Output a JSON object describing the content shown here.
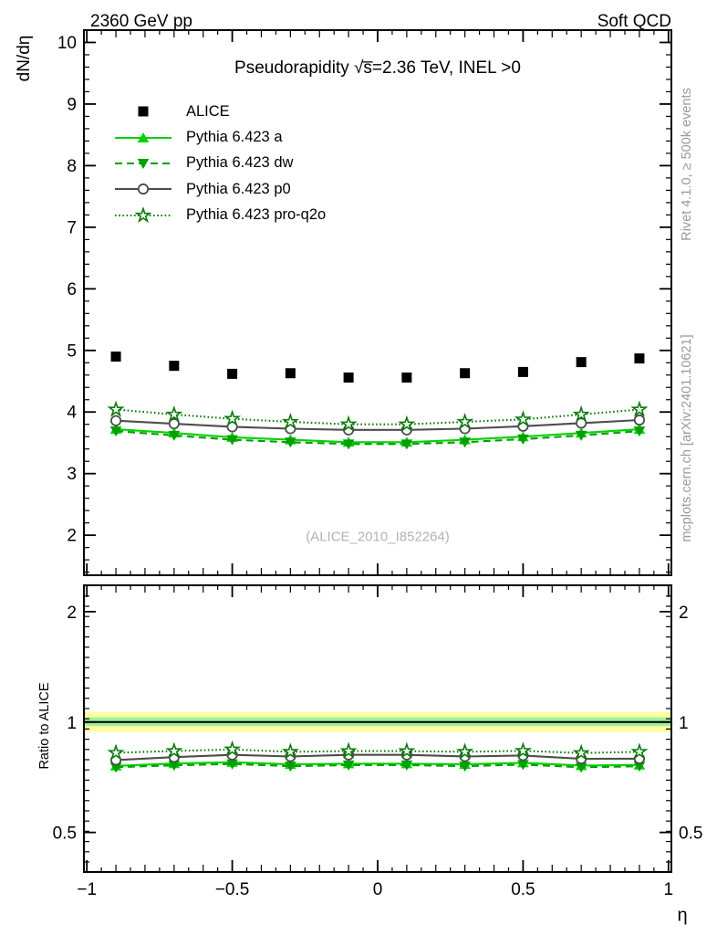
{
  "header": {
    "left": "2360 GeV pp",
    "right": "Soft QCD"
  },
  "side_notes": {
    "top": "Rivet 4.1.0, ≥ 500k events",
    "bottom": "mcplots.cern.ch [arXiv:2401.10621]"
  },
  "watermark": "(ALICE_2010_I852264)",
  "chart_data": {
    "type": "line",
    "title": "Pseudorapidity √s̅=2.36 TeV, INEL >0",
    "xlabel": "η",
    "ylabel_main": "dN/dη",
    "ylabel_ratio": "Ratio to ALICE",
    "grid": false,
    "legend_position": "top-left",
    "xlim": [
      -1.01,
      1.01
    ],
    "ylim_main": [
      1.35,
      10.2
    ],
    "ylim_ratio": [
      0.39,
      2.36
    ],
    "ratio_scale": "log",
    "x_ticks": [
      -1,
      -0.5,
      0,
      0.5,
      1
    ],
    "x_tick_labels": [
      "−1",
      "−0.5",
      "0",
      "0.5",
      "1"
    ],
    "y_ticks_main": [
      2,
      3,
      4,
      5,
      6,
      7,
      8,
      9,
      10
    ],
    "y_ticks_ratio": [
      0.5,
      1,
      2
    ],
    "y_tick_labels_ratio": [
      "0.5",
      "1",
      "2"
    ],
    "x": [
      -0.9,
      -0.7,
      -0.5,
      -0.3,
      -0.1,
      0.1,
      0.3,
      0.5,
      0.7,
      0.9
    ],
    "data_series": {
      "name": "ALICE",
      "marker": "square",
      "filled": true,
      "line": "none",
      "color": "#000000",
      "values": [
        4.9,
        4.75,
        4.62,
        4.63,
        4.56,
        4.56,
        4.63,
        4.65,
        4.81,
        4.87
      ]
    },
    "mc_series": [
      {
        "name": "Pythia 6.423 a",
        "marker": "triangle-up",
        "filled": true,
        "line": "solid",
        "color": "#00d200",
        "values": [
          3.72,
          3.66,
          3.59,
          3.55,
          3.51,
          3.51,
          3.55,
          3.6,
          3.66,
          3.72
        ]
      },
      {
        "name": "Pythia 6.423 dw",
        "marker": "triangle-down",
        "filled": true,
        "line": "dashed",
        "color": "#00a000",
        "values": [
          3.69,
          3.62,
          3.55,
          3.51,
          3.48,
          3.48,
          3.51,
          3.56,
          3.62,
          3.69
        ]
      },
      {
        "name": "Pythia 6.423 p0",
        "marker": "circle",
        "filled": false,
        "line": "solid",
        "color": "#4d4d4d",
        "values": [
          3.86,
          3.81,
          3.76,
          3.73,
          3.71,
          3.71,
          3.73,
          3.77,
          3.82,
          3.87
        ]
      },
      {
        "name": "Pythia 6.423 pro-q2o",
        "marker": "star",
        "filled": false,
        "line": "dotted",
        "color": "#0a7a0a",
        "values": [
          4.04,
          3.96,
          3.89,
          3.84,
          3.8,
          3.8,
          3.84,
          3.88,
          3.96,
          4.04
        ]
      }
    ],
    "ratio_reference_line": 1.0,
    "ratio_bands": [
      {
        "name": "data-uncertainty-outer",
        "color": "#ffff9e",
        "range": [
          0.94,
          1.065
        ]
      },
      {
        "name": "data-uncertainty-inner",
        "color": "#a0f0a0",
        "range": [
          0.975,
          1.03
        ]
      }
    ]
  }
}
